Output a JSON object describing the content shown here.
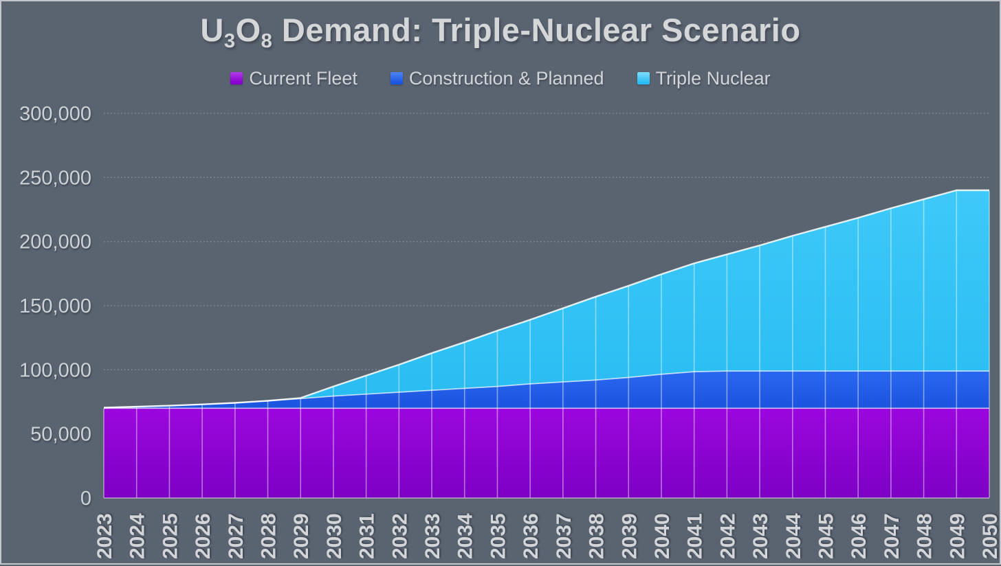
{
  "page": {
    "background_color": "#5a6471",
    "border_color": "#c3c7cb",
    "text_color": "#d3d5d8"
  },
  "title": {
    "el1": "U",
    "sub1": "3",
    "el2": "O",
    "sub2": "8",
    "rest": " Demand: Triple-Nuclear Scenario",
    "full_text": "U3O8 Demand: Triple-Nuclear Scenario"
  },
  "legend": {
    "items": [
      {
        "label": "Current Fleet",
        "color_top": "#b13cea",
        "color_bottom": "#8800cc"
      },
      {
        "label": "Construction & Planned",
        "color_top": "#4d84f4",
        "color_bottom": "#1c55e0"
      },
      {
        "label": "Triple Nuclear",
        "color_top": "#7fdcfa",
        "color_bottom": "#29bcf2"
      }
    ]
  },
  "chart_data": {
    "type": "area",
    "stacked": true,
    "title": "U3O8 Demand: Triple-Nuclear Scenario",
    "xlabel": "",
    "ylabel": "",
    "x": [
      2023,
      2024,
      2025,
      2026,
      2027,
      2028,
      2029,
      2030,
      2031,
      2032,
      2033,
      2034,
      2035,
      2036,
      2037,
      2038,
      2039,
      2040,
      2041,
      2042,
      2043,
      2044,
      2045,
      2046,
      2047,
      2048,
      2049,
      2050
    ],
    "series": [
      {
        "name": "Current Fleet",
        "color": "#8a00d0",
        "gradient_top": "#9b07dd",
        "gradient_bottom": "#7c00c4",
        "values": [
          70000,
          70000,
          70000,
          70000,
          70000,
          70000,
          70000,
          70000,
          70000,
          70000,
          70000,
          70000,
          70000,
          70000,
          70000,
          70000,
          70000,
          70000,
          70000,
          70000,
          70000,
          70000,
          70000,
          70000,
          70000,
          70000,
          70000,
          70000
        ]
      },
      {
        "name": "Construction & Planned",
        "color": "#2060ea",
        "gradient_top": "#2a68f0",
        "gradient_bottom": "#1b53de",
        "values": [
          500,
          1200,
          2000,
          3000,
          4200,
          5800,
          7500,
          9500,
          11000,
          12500,
          14000,
          15500,
          17000,
          19000,
          20500,
          22000,
          24000,
          26500,
          28500,
          29000,
          29000,
          29000,
          29000,
          29000,
          29000,
          29000,
          29000,
          29000
        ]
      },
      {
        "name": "Triple Nuclear",
        "color": "#32c3f6",
        "gradient_top": "#3ec9f8",
        "gradient_bottom": "#29bcf2",
        "values": [
          0,
          0,
          0,
          0,
          0,
          0,
          500,
          7500,
          14500,
          21500,
          29000,
          36000,
          43500,
          50000,
          57500,
          65000,
          71500,
          78000,
          84500,
          91000,
          98000,
          105500,
          112500,
          119500,
          127000,
          134000,
          141000,
          141000
        ]
      }
    ],
    "ylim": [
      0,
      300000
    ],
    "yticks": [
      0,
      50000,
      100000,
      150000,
      200000,
      250000,
      300000
    ],
    "ytick_labels": [
      "0",
      "50,000",
      "100,000",
      "150,000",
      "200,000",
      "250,000",
      "300,000"
    ],
    "grid": "dotted-horizontal",
    "legend_position": "top",
    "total_peak": 240000,
    "grid_color": "rgba(255,255,255,0.30)",
    "separator_color": "rgba(255,255,255,0.45)",
    "edge_line_color": "rgba(255,255,255,0.88)"
  }
}
